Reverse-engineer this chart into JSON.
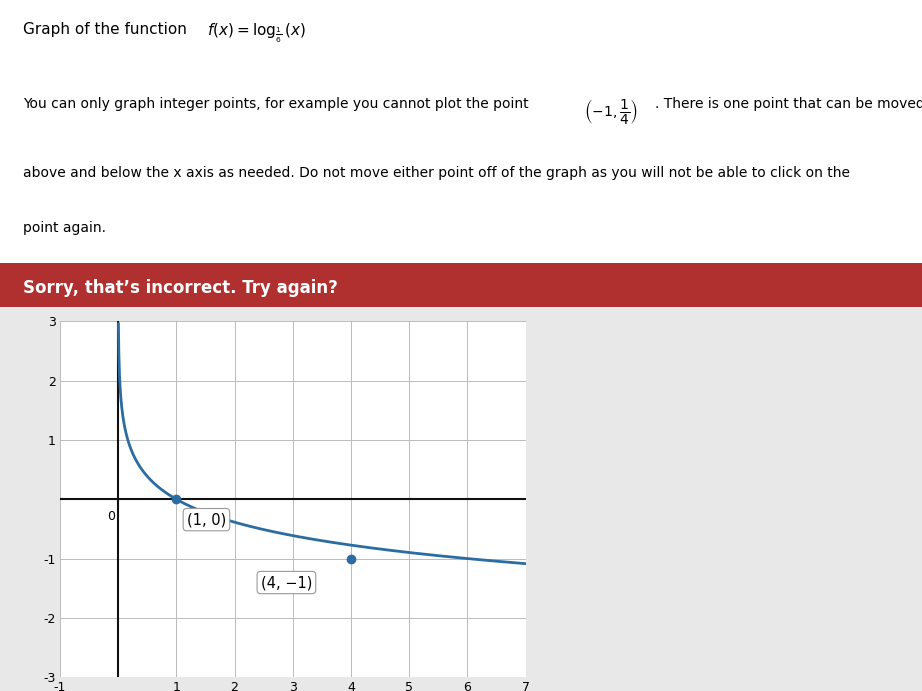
{
  "error_banner": "Sorry, that’s incorrect. Try again?",
  "error_bg": "#b03030",
  "error_text_color": "#ffffff",
  "graph_bg": "#ffffff",
  "page_bg": "#e8e8e8",
  "text_area_bg": "#f5f5f5",
  "curve_color": "#2b6ca3",
  "point_color": "#2b6ca3",
  "axis_color": "#111111",
  "grid_color": "#bbbbbb",
  "xlim": [
    -1,
    7
  ],
  "ylim": [
    -3,
    3
  ],
  "xticks": [
    -1,
    0,
    1,
    2,
    3,
    4,
    5,
    6,
    7
  ],
  "yticks": [
    -3,
    -2,
    -1,
    0,
    1,
    2,
    3
  ],
  "points": [
    [
      1,
      0
    ],
    [
      4,
      -1
    ]
  ],
  "point_labels": [
    "(1, 0)",
    "(4, −1)"
  ],
  "base": 0.16666666666666666
}
